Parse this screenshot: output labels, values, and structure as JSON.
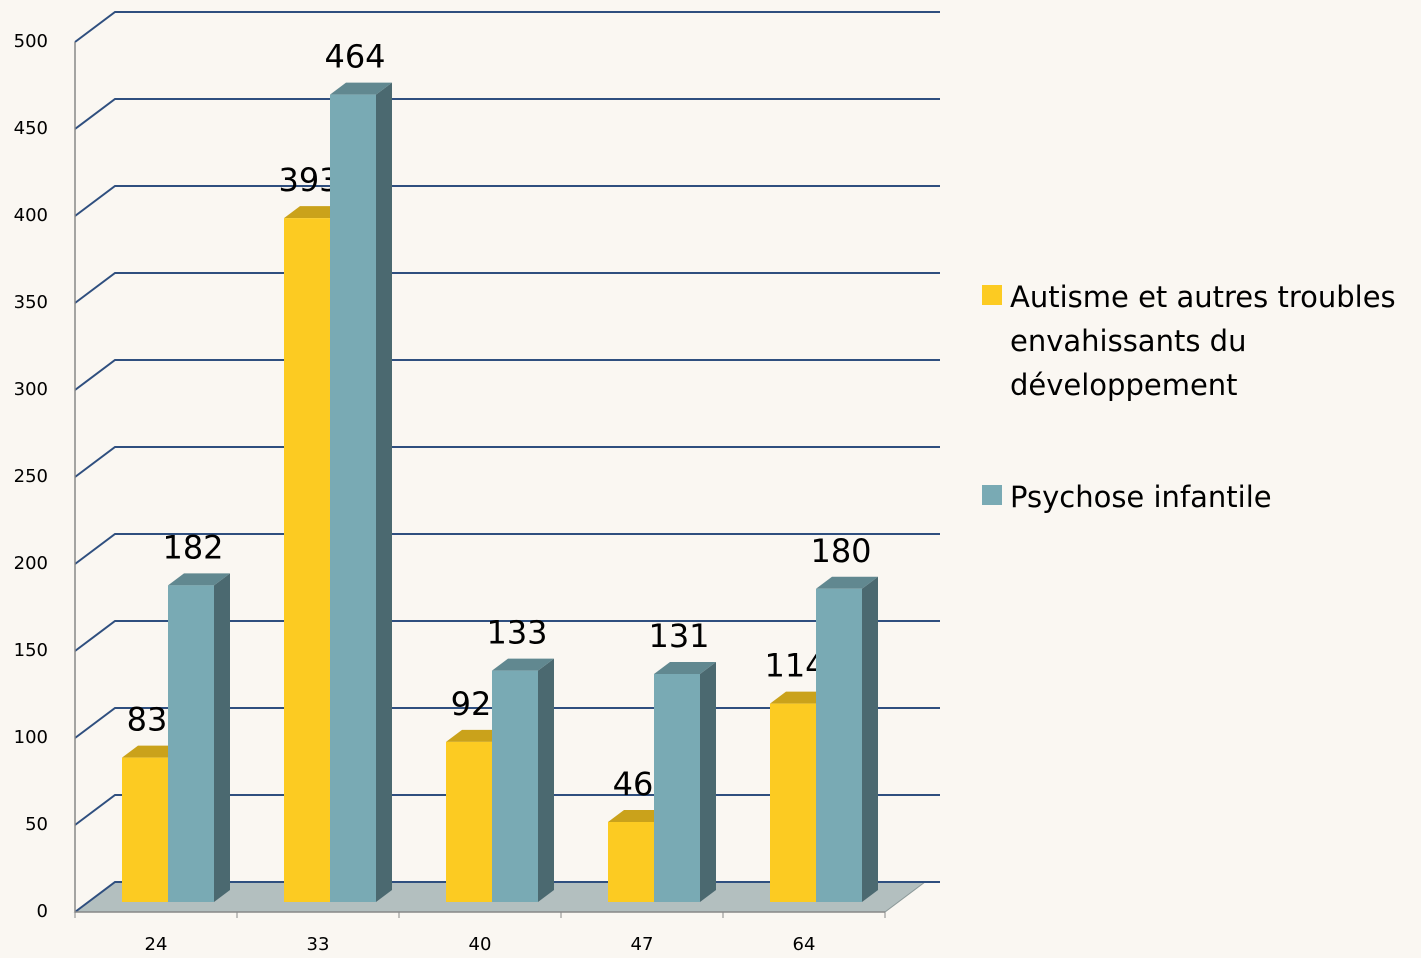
{
  "chart_data": {
    "type": "bar3d",
    "categories": [
      "24",
      "33",
      "40",
      "47",
      "64"
    ],
    "series": [
      {
        "name": "Autisme et autres troubles envahissants du développement",
        "color": "#fccb22",
        "values": [
          83,
          393,
          92,
          46,
          114
        ]
      },
      {
        "name": "Psychose infantile",
        "color": "#79aab4",
        "values": [
          182,
          464,
          133,
          131,
          180
        ]
      }
    ],
    "ylim": [
      0,
      500
    ],
    "yticks": [
      0,
      50,
      100,
      150,
      200,
      250,
      300,
      350,
      400,
      450,
      500
    ],
    "grid": true,
    "legend": "right"
  }
}
